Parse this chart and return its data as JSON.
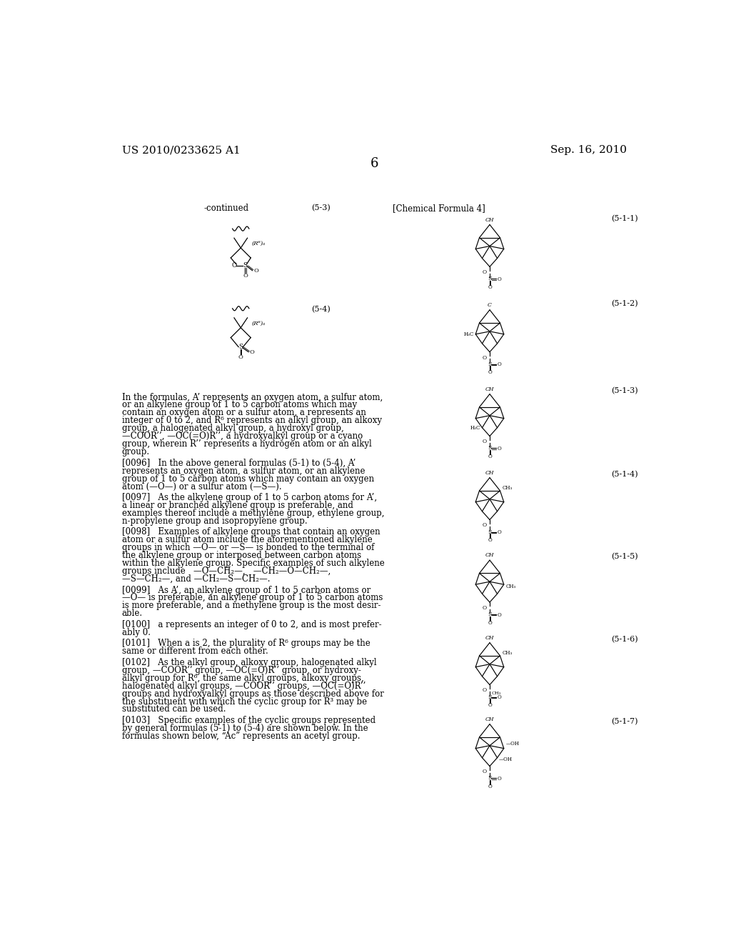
{
  "header_left": "US 2010/0233625 A1",
  "header_right": "Sep. 16, 2010",
  "page_number": "6",
  "background_color": "#ffffff",
  "text_color": "#000000",
  "font_size_header": 11,
  "font_size_body": 8.5,
  "font_size_label": 8.0,
  "continued_label": "-continued",
  "chemical_formula_label": "[Chemical Formula 4]",
  "paragraph_texts": [
    "In the formulas, A’ represents an oxygen atom, a sulfur atom,\nor an alkylene group of 1 to 5 carbon atoms which may\ncontain an oxygen atom or a sulfur atom, a represents an\ninteger of 0 to 2, and R⁶ represents an alkyl group, an alkoxy\ngroup, a halogenated alkyl group, a hydroxyl group,\n—COOR’’, —OC(=O)R’’, a hydroxyalkyl group or a cyano\ngroup, wherein R’’ represents a hydrogen atom or an alkyl\ngroup.",
    "[0096]   In the above general formulas (5-1) to (5-4), A’\nrepresents an oxygen atom, a sulfur atom, or an alkylene\ngroup of 1 to 5 carbon atoms which may contain an oxygen\natom (—O—) or a sulfur atom (—S—).",
    "[0097]   As the alkylene group of 1 to 5 carbon atoms for A’,\na linear or branched alkylene group is preferable, and\nexamples thereof include a methylene group, ethylene group,\nn-propylene group and isopropylene group.",
    "[0098]   Examples of alkylene groups that contain an oxygen\natom or a sulfur atom include the aforementioned alkylene\ngroups in which —O— or —S— is bonded to the terminal of\nthe alkylene group or interposed between carbon atoms\nwithin the alkylene group. Specific examples of such alkylene\ngroups include   —O—CH₂—,   —CH₂—O—CH₂—,\n—S—CH₂—, and —CH₂—S—CH₂—.",
    "[0099]   As A’, an alkylene group of 1 to 5 carbon atoms or\n—O— is preferable, an alkylene group of 1 to 5 carbon atoms\nis more preferable, and a methylene group is the most desir-\nable.",
    "[0100]   a represents an integer of 0 to 2, and is most prefer-\nably 0.",
    "[0101]   When a is 2, the plurality of R⁶ groups may be the\nsame or different from each other.",
    "[0102]   As the alkyl group, alkoxy group, halogenated alkyl\ngroup, —COOR’’ group, —OC(=O)R’’ group, or hydroxy-\nalkyl group for R⁶, the same alkyl groups, alkoxy groups,\nhalogenated alkyl groups, —COOR’’ groups, —OC(=O)R’’\ngroups and hydroxyalkyl groups as those described above for\nthe substituent with which the cyclic group for R³ may be\nsubstituted can be used.",
    "[0103]   Specific examples of the cyclic groups represented\nby general formulas (5-1) to (5-4) are shown below. In the\nformulas shown below, “Ac” represents an acetyl group."
  ]
}
